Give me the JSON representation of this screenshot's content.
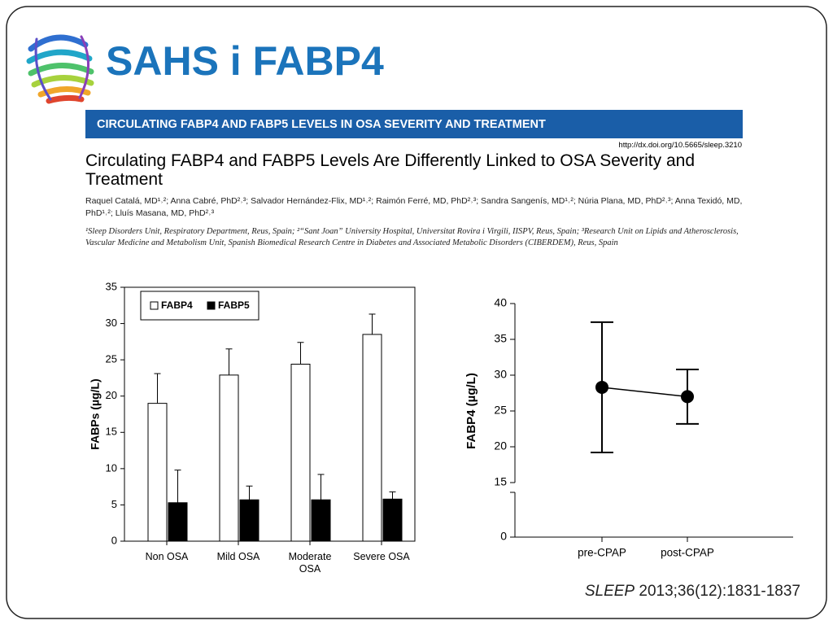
{
  "header": {
    "title": "SAHS i FABP4"
  },
  "paper": {
    "banner": "CIRCULATING FABP4 AND FABP5 LEVELS IN OSA SEVERITY AND TREATMENT",
    "doi": "http://dx.doi.org/10.5665/sleep.3210",
    "title": "Circulating FABP4 and FABP5 Levels Are Differently Linked to OSA Severity and Treatment",
    "authors": "Raquel Catalá, MD¹˒²; Anna Cabré, PhD²˒³; Salvador Hernández-Flix, MD¹˒²; Raimón Ferré, MD, PhD²˒³; Sandra Sangenís, MD¹˒²; Núria Plana, MD, PhD²˒³; Anna Texidó, MD, PhD¹˒²; Lluís Masana, MD, PhD²˒³",
    "affiliations": "¹Sleep Disorders Unit, Respiratory Department, Reus, Spain; ²“Sant Joan” University Hospital, Universitat Rovira i Virgili, IISPV, Reus, Spain; ³Research Unit on Lipids and Atherosclerosis, Vascular Medicine and Metabolism Unit, Spanish Biomedical Research Centre in Diabetes and Associated Metabolic Disorders (CIBERDEM), Reus, Spain"
  },
  "citation": {
    "journal": "SLEEP",
    "details": "2013;36(12):1831-1837"
  },
  "chart_data": [
    {
      "type": "bar",
      "y_label": "FABPs (µg/L)",
      "categories": [
        "Non OSA",
        "Mild OSA",
        "Moderate OSA",
        "Severe OSA"
      ],
      "series": [
        {
          "name": "FABP4",
          "color": "#ffffff",
          "values": [
            19,
            22.9,
            24.4,
            28.5
          ],
          "errors": [
            4.1,
            3.6,
            3.0,
            2.8
          ],
          "error_bars": "both"
        },
        {
          "name": "FABP5",
          "color": "#000000",
          "values": [
            5.3,
            5.7,
            5.7,
            5.8
          ],
          "errors": [
            4.5,
            1.9,
            3.5,
            1.0
          ],
          "error_bars": "upper"
        }
      ],
      "ylim": [
        0,
        35
      ],
      "yticks": [
        0,
        5,
        10,
        15,
        20,
        25,
        30,
        35
      ],
      "legend": "top-left"
    },
    {
      "type": "line",
      "y_label": "FABP4 (µg/L)",
      "categories": [
        "pre-CPAP",
        "post-CPAP"
      ],
      "values": [
        28.3,
        27.0
      ],
      "errors": [
        9.1,
        3.8
      ],
      "color": "#000000",
      "ylim": [
        0,
        40
      ],
      "ybreak": [
        0,
        15
      ],
      "yticks": [
        0,
        15,
        20,
        25,
        30,
        35,
        40
      ]
    }
  ]
}
